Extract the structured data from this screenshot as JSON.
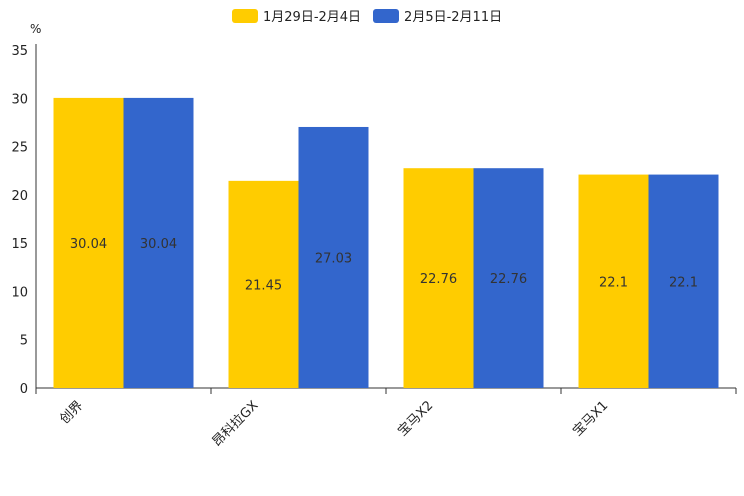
{
  "chart_data": {
    "type": "bar",
    "unit": "%",
    "categories": [
      "创界",
      "昂科拉GX",
      "宝马X2",
      "宝马X1"
    ],
    "series": [
      {
        "name": "1月29日-2月4日",
        "color": "#FFCC00",
        "values": [
          30.04,
          21.45,
          22.76,
          22.1
        ]
      },
      {
        "name": "2月5日-2月11日",
        "color": "#3366CC",
        "values": [
          30.04,
          27.03,
          22.76,
          22.1
        ]
      }
    ],
    "data_labels": [
      [
        "30.04",
        "21.45",
        "22.76",
        "22.1"
      ],
      [
        "30.04",
        "27.03",
        "22.76",
        "22.1"
      ]
    ],
    "ylim": [
      0,
      35
    ],
    "yticks": [
      0,
      5,
      10,
      15,
      20,
      25,
      30,
      35
    ],
    "ytick_labels": [
      "0",
      "5",
      "10",
      "15",
      "20",
      "25",
      "30",
      "35"
    ],
    "legend_position": "top-center"
  }
}
